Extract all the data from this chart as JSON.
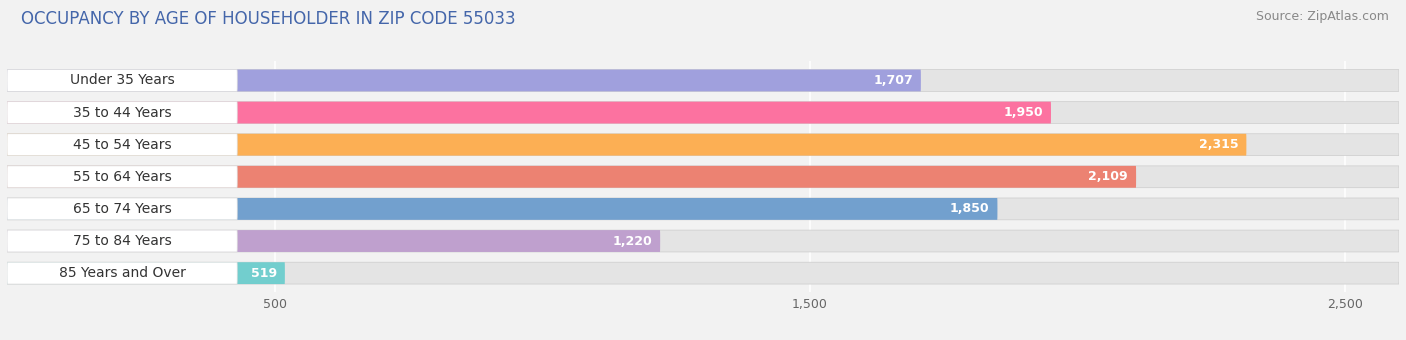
{
  "title": "OCCUPANCY BY AGE OF HOUSEHOLDER IN ZIP CODE 55033",
  "source": "Source: ZipAtlas.com",
  "categories": [
    "Under 35 Years",
    "35 to 44 Years",
    "45 to 54 Years",
    "55 to 64 Years",
    "65 to 74 Years",
    "75 to 84 Years",
    "85 Years and Over"
  ],
  "values": [
    1707,
    1950,
    2315,
    2109,
    1850,
    1220,
    519
  ],
  "bar_colors": [
    "#9999dd",
    "#ff6699",
    "#ffaa44",
    "#ee7766",
    "#6699cc",
    "#bb99cc",
    "#66cccc"
  ],
  "xlim_max": 2600,
  "xticks": [
    500,
    1500,
    2500
  ],
  "xtick_labels": [
    "500",
    "1,500",
    "2,500"
  ],
  "background_color": "#f2f2f2",
  "bar_bg_color": "#e4e4e4",
  "label_bg_color": "#ffffff",
  "title_fontsize": 12,
  "source_fontsize": 9,
  "label_fontsize": 10,
  "value_fontsize": 9
}
